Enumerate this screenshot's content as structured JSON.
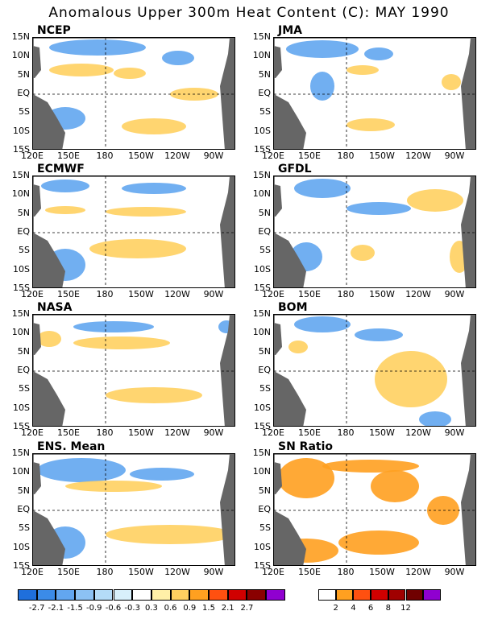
{
  "title": "Anomalous Upper 300m Heat Content (C): MAY 1990",
  "lat_labels": [
    "15N",
    "10N",
    "5N",
    "EQ",
    "5S",
    "10S",
    "15S"
  ],
  "lon_labels": [
    "120E",
    "150E",
    "180",
    "150W",
    "120W",
    "90W"
  ],
  "panels": [
    {
      "id": "ncep",
      "label": "NCEP"
    },
    {
      "id": "jma",
      "label": "JMA"
    },
    {
      "id": "ecmwf",
      "label": "ECMWF"
    },
    {
      "id": "gfdl",
      "label": "GFDL"
    },
    {
      "id": "nasa",
      "label": "NASA"
    },
    {
      "id": "bom",
      "label": "BOM"
    },
    {
      "id": "ens",
      "label": "ENS. Mean"
    },
    {
      "id": "sn",
      "label": "SN Ratio"
    }
  ],
  "colorbar_anom": {
    "labels": [
      "-2.7",
      "-2.1",
      "-1.5",
      "-0.9",
      "-0.6",
      "-0.3",
      "0.3",
      "0.6",
      "0.9",
      "1.5",
      "2.1",
      "2.7"
    ],
    "colors": [
      "#1f6fdc",
      "#3b8be8",
      "#62a6f0",
      "#8cc2f4",
      "#b4dcf8",
      "#d8f0fb",
      "#ffffff",
      "#fff0a8",
      "#ffd060",
      "#ffa020",
      "#ff5010",
      "#d00000",
      "#8a0000",
      "#9000d0"
    ]
  },
  "colorbar_sn": {
    "labels": [
      "2",
      "4",
      "6",
      "8",
      "12"
    ],
    "colors": [
      "#ffffff",
      "#ffa020",
      "#ff5010",
      "#d00000",
      "#a00000",
      "#700000",
      "#9000d0"
    ]
  },
  "colors": {
    "land": "#666666",
    "neg": "#62a6f0",
    "pos": "#ffd060"
  }
}
